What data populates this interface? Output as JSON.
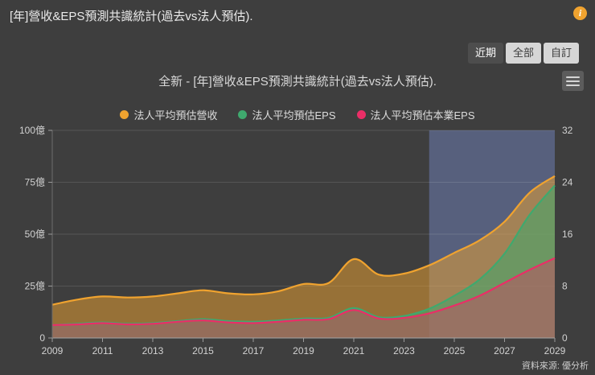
{
  "header": {
    "title": "[年]營收&EPS預測共識統計(過去vs法人預估).",
    "info_label": "i"
  },
  "range_selector": {
    "buttons": [
      {
        "label": "近期",
        "active": true
      },
      {
        "label": "全部",
        "active": false
      },
      {
        "label": "自訂",
        "active": false
      }
    ]
  },
  "chart": {
    "title": "全新 - [年]營收&EPS預測共識統計(過去vs法人預估).",
    "source": "資料來源: 優分析",
    "colors": {
      "revenue": "#f0a32f",
      "eps": "#3fa96e",
      "core_eps": "#ea2e67",
      "forecast_overlay": "rgba(108,124,176,0.55)",
      "background": "#3e3e3e"
    }
  },
  "chart_data": {
    "type": "area",
    "title": "全新 - [年]營收&EPS預測共識統計(過去vs法人預估).",
    "x": [
      2009,
      2010,
      2011,
      2012,
      2013,
      2014,
      2015,
      2016,
      2017,
      2018,
      2019,
      2020,
      2021,
      2022,
      2023,
      2024,
      2025,
      2026,
      2027,
      2028,
      2029
    ],
    "x_tick_step": 2,
    "left_axis": {
      "min": 0,
      "max": 100,
      "ticks": [
        {
          "v": 100,
          "label": "100億"
        },
        {
          "v": 75,
          "label": "75億"
        },
        {
          "v": 50,
          "label": "50億"
        },
        {
          "v": 25,
          "label": "25億"
        },
        {
          "v": 0,
          "label": "0"
        }
      ]
    },
    "right_axis": {
      "min": 0,
      "max": 32,
      "ticks": [
        {
          "v": 32,
          "label": "32"
        },
        {
          "v": 24,
          "label": "24"
        },
        {
          "v": 16,
          "label": "16"
        },
        {
          "v": 8,
          "label": "8"
        },
        {
          "v": 0,
          "label": "0"
        }
      ]
    },
    "forecast_region": {
      "from": 2024,
      "to": 2029
    },
    "series": [
      {
        "key": "revenue",
        "name": "法人平均預估營收",
        "axis": "left",
        "color": "#f0a32f",
        "fill_opacity": 0.5,
        "values": [
          16,
          18.5,
          20,
          19.5,
          20,
          21.5,
          23,
          21.5,
          21,
          22.5,
          26,
          26.5,
          38,
          30.5,
          31,
          35,
          41,
          47,
          56,
          70,
          78
        ]
      },
      {
        "key": "eps",
        "name": "法人平均預估EPS",
        "axis": "right",
        "color": "#3fa96e",
        "fill_opacity": 0.55,
        "values": [
          2.0,
          2.2,
          2.4,
          2.2,
          2.3,
          2.6,
          2.9,
          2.6,
          2.5,
          2.7,
          3.0,
          3.1,
          4.6,
          3.2,
          3.4,
          4.5,
          6.5,
          9,
          13,
          19,
          23.5
        ]
      },
      {
        "key": "core_eps",
        "name": "法人平均預估本業EPS",
        "axis": "right",
        "color": "#ea2e67",
        "fill_opacity": 0.35,
        "values": [
          2.0,
          2.1,
          2.3,
          2.1,
          2.2,
          2.5,
          2.7,
          2.4,
          2.3,
          2.5,
          2.8,
          2.9,
          4.3,
          3.0,
          3.1,
          3.8,
          5,
          6.5,
          8.5,
          10.5,
          12.3
        ]
      }
    ]
  }
}
